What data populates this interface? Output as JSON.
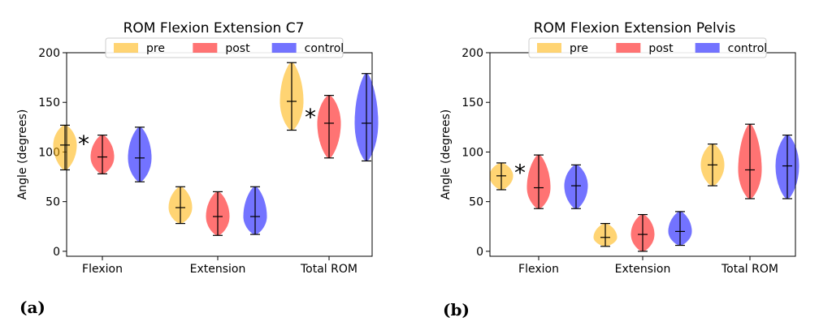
{
  "panel_labels": [
    "(a)",
    "(b)"
  ],
  "colors": {
    "pre": "#ffb000",
    "post": "#ff0000",
    "control": "#0000ff"
  },
  "chart_data": [
    {
      "type": "violin",
      "title": "ROM Flexion Extension C7",
      "ylabel": "Angle (degrees)",
      "ylim": [
        -5,
        200
      ],
      "yticks": [
        0,
        50,
        100,
        150,
        200
      ],
      "categories": [
        "Flexion",
        "Extension",
        "Total ROM"
      ],
      "legend": {
        "placement": "top-center",
        "entries": [
          "pre",
          "post",
          "control"
        ]
      },
      "series": [
        {
          "name": "pre",
          "color_key": "pre",
          "stats": [
            {
              "min": 82,
              "median": 107,
              "max": 127
            },
            {
              "min": 28,
              "median": 44,
              "max": 65
            },
            {
              "min": 122,
              "median": 151,
              "max": 190
            }
          ]
        },
        {
          "name": "post",
          "color_key": "post",
          "stats": [
            {
              "min": 78,
              "median": 95,
              "max": 117
            },
            {
              "min": 16,
              "median": 35,
              "max": 60
            },
            {
              "min": 94,
              "median": 129,
              "max": 157
            }
          ]
        },
        {
          "name": "control",
          "color_key": "control",
          "stats": [
            {
              "min": 70,
              "median": 94,
              "max": 125
            },
            {
              "min": 17,
              "median": 35,
              "max": 65
            },
            {
              "min": 91,
              "median": 129,
              "max": 179
            }
          ]
        }
      ],
      "annotations": [
        {
          "text": "*",
          "category_index": 0,
          "between": [
            "pre",
            "post"
          ],
          "y": 110
        },
        {
          "text": "*",
          "category_index": 2,
          "between": [
            "pre",
            "post"
          ],
          "y": 137
        }
      ]
    },
    {
      "type": "violin",
      "title": "ROM Flexion Extension Pelvis",
      "ylabel": "Angle (degrees)",
      "ylim": [
        -5,
        200
      ],
      "yticks": [
        0,
        50,
        100,
        150,
        200
      ],
      "categories": [
        "Flexion",
        "Extension",
        "Total ROM"
      ],
      "legend": {
        "placement": "top-center",
        "entries": [
          "pre",
          "post",
          "control"
        ]
      },
      "series": [
        {
          "name": "pre",
          "color_key": "pre",
          "stats": [
            {
              "min": 62,
              "median": 76,
              "max": 89
            },
            {
              "min": 5,
              "median": 14,
              "max": 28
            },
            {
              "min": 66,
              "median": 87,
              "max": 108
            }
          ]
        },
        {
          "name": "post",
          "color_key": "post",
          "stats": [
            {
              "min": 43,
              "median": 64,
              "max": 97
            },
            {
              "min": 0,
              "median": 17,
              "max": 37
            },
            {
              "min": 53,
              "median": 82,
              "max": 128
            }
          ]
        },
        {
          "name": "control",
          "color_key": "control",
          "stats": [
            {
              "min": 43,
              "median": 66,
              "max": 87
            },
            {
              "min": 6,
              "median": 20,
              "max": 40
            },
            {
              "min": 53,
              "median": 86,
              "max": 117
            }
          ]
        }
      ],
      "annotations": [
        {
          "text": "*",
          "category_index": 0,
          "between": [
            "pre",
            "post"
          ],
          "y": 81
        }
      ]
    }
  ]
}
